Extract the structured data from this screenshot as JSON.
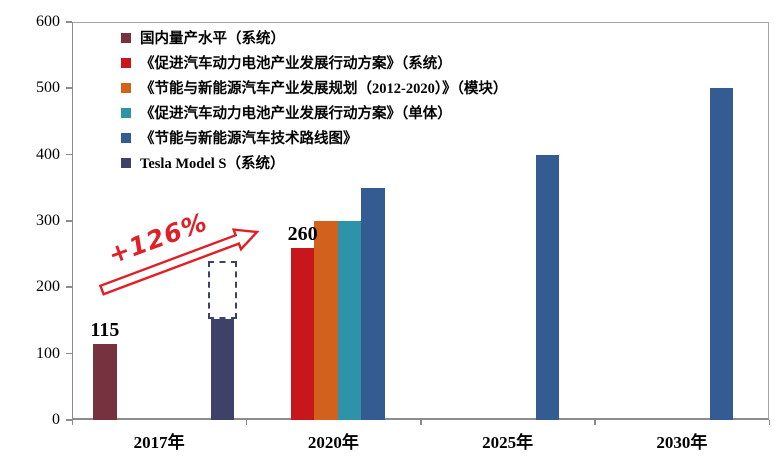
{
  "chart_data": {
    "type": "bar",
    "title": "",
    "categories": [
      "2017年",
      "2020年",
      "2025年",
      "2030年"
    ],
    "series": [
      {
        "name": "国内量产水平（系统）",
        "color": "#76323F",
        "values": [
          115,
          null,
          null,
          null
        ]
      },
      {
        "name": "《促进汽车动力电池产业发展行动方案》（系统）",
        "color": "#C8161D",
        "values": [
          null,
          260,
          null,
          null
        ]
      },
      {
        "name": "《节能与新能源汽车产业发展规划（2012-2020）》（模块）",
        "color": "#D2621B",
        "values": [
          null,
          300,
          null,
          null
        ]
      },
      {
        "name": "《促进汽车动力电池产业发展行动方案》（单体）",
        "color": "#2E93A8",
        "values": [
          null,
          300,
          null,
          null
        ]
      },
      {
        "name": "《节能与新能源汽车技术路线图》",
        "color": "#355C92",
        "values": [
          null,
          350,
          400,
          500
        ]
      },
      {
        "name": "Tesla Model S（系统）",
        "color": "#3E4268",
        "values": [
          160,
          null,
          null,
          null
        ],
        "projection_top": 240,
        "projection_category": 0,
        "projection_style": "dashed-outline"
      }
    ],
    "ylim": [
      0,
      600
    ],
    "yticks": [
      0,
      100,
      200,
      300,
      400,
      500,
      600
    ],
    "grid": false,
    "legend_position": "top-left-inside",
    "value_labels": [
      {
        "text": "115",
        "category": 0,
        "series": 0
      },
      {
        "text": "260",
        "category": 1,
        "series": 1
      }
    ],
    "annotations": {
      "growth_label": "+126%",
      "arrow_color": "#DF2127",
      "arrow_from": "2017 bar (115)",
      "arrow_to": "2020 bar (260)"
    }
  }
}
